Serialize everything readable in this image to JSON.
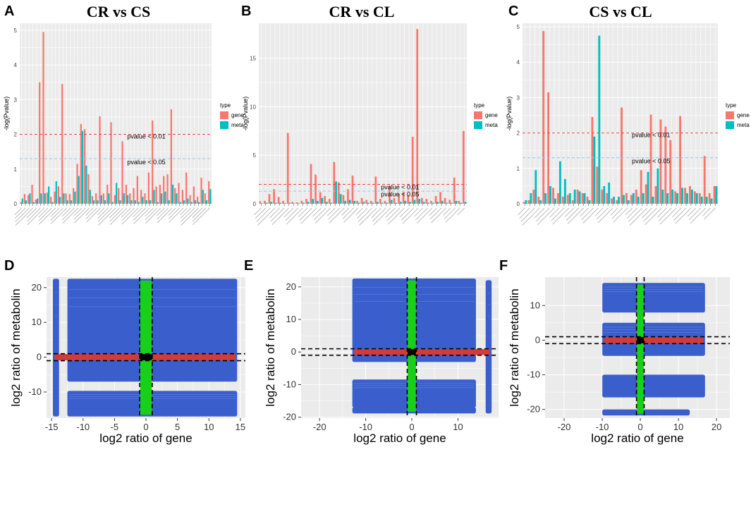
{
  "figure": {
    "panel_letters": [
      "A",
      "B",
      "C",
      "D",
      "E",
      "F"
    ]
  },
  "colors": {
    "gene": "#F8766D",
    "meta": "#00BFC4",
    "panel_bg": "#EBEBEB",
    "scatter_blue": "#3A5FCD",
    "scatter_red": "#D33B3B",
    "scatter_green": "#18D018",
    "scatter_black": "#000000"
  },
  "chart_data": [
    {
      "id": "A",
      "type": "bar",
      "title": "CR vs CS",
      "ylabel": "-log(Pvalue)",
      "xlabel": "",
      "ylim": [
        0,
        5.2
      ],
      "yticks": [
        0,
        1,
        2,
        3,
        4,
        5
      ],
      "legend": {
        "title": "type",
        "entries": [
          "gene",
          "meta"
        ],
        "position": "right"
      },
      "thresholds": [
        {
          "label": "pvalue < 0.01",
          "value": 2.0,
          "color": "#E8483F"
        },
        {
          "label": "pvalue < 0.05",
          "value": 1.3,
          "color": "#8CC8F0"
        }
      ],
      "series": [
        {
          "name": "gene",
          "values": [
            0.05,
            0.28,
            0.25,
            0.55,
            0.12,
            3.5,
            4.95,
            0.32,
            0.2,
            0.35,
            0.5,
            3.45,
            0.3,
            0.28,
            0.45,
            1.15,
            2.3,
            2.15,
            0.85,
            0.22,
            0.3,
            2.52,
            0.3,
            0.55,
            2.35,
            0.25,
            0.45,
            1.8,
            0.55,
            0.3,
            0.45,
            0.8,
            0.4,
            0.3,
            0.9,
            2.4,
            0.5,
            0.55,
            0.8,
            0.85,
            2.72,
            0.45,
            0.6,
            0.4,
            0.9,
            0.25,
            0.5,
            0.2,
            0.75,
            0.3,
            0.65
          ]
        },
        {
          "name": "meta",
          "values": [
            0.15,
            0.1,
            0.3,
            0.05,
            0.15,
            0.3,
            0.3,
            0.5,
            0.05,
            0.65,
            0.2,
            0.3,
            0.1,
            0.1,
            0.35,
            0.8,
            2.1,
            1.1,
            0.4,
            0.1,
            0.1,
            0.25,
            0.1,
            0.3,
            0.05,
            0.6,
            0.1,
            0.3,
            0.25,
            0.1,
            0.1,
            0.05,
            0.2,
            0.1,
            0.1,
            0.4,
            0.05,
            0.3,
            0.35,
            0.1,
            0.55,
            0.3,
            0.05,
            0.1,
            0.15,
            0.05,
            0.1,
            0.05,
            0.4,
            0.1,
            0.42
          ]
        }
      ]
    },
    {
      "id": "B",
      "type": "bar",
      "title": "CR vs CL",
      "ylabel": "-log(Pvalue)",
      "xlabel": "",
      "ylim": [
        0,
        18.6
      ],
      "yticks": [
        0,
        5,
        10,
        15
      ],
      "legend": {
        "title": "type",
        "entries": [
          "gene",
          "meta"
        ],
        "position": "right"
      },
      "thresholds": [
        {
          "label": "pvalue < 0.01",
          "value": 2.0,
          "color": "#E8483F"
        },
        {
          "label": "pvalue < 0.05",
          "value": 1.3,
          "color": "#8CC8F0"
        }
      ],
      "series": [
        {
          "name": "gene",
          "values": [
            0.25,
            0.3,
            1.0,
            1.5,
            0.7,
            0.3,
            7.3,
            0.2,
            0.15,
            0.3,
            0.5,
            4.1,
            3.0,
            1.2,
            0.8,
            0.5,
            4.3,
            2.2,
            0.9,
            1.5,
            2.9,
            0.3,
            0.6,
            0.4,
            0.3,
            2.8,
            0.5,
            0.3,
            1.8,
            0.6,
            1.0,
            1.2,
            0.9,
            6.9,
            18.0,
            0.6,
            0.5,
            0.3,
            0.8,
            1.2,
            0.6,
            0.4,
            2.7,
            0.3,
            7.5
          ]
        },
        {
          "name": "meta",
          "values": [
            0.05,
            0.1,
            0.2,
            0.1,
            0.1,
            0.05,
            0.1,
            0.05,
            0.05,
            0.1,
            0.2,
            0.5,
            0.3,
            0.6,
            0.2,
            0.1,
            2.3,
            1.0,
            0.3,
            0.4,
            0.3,
            0.1,
            0.2,
            0.1,
            0.1,
            0.2,
            0.1,
            0.1,
            0.4,
            0.1,
            0.2,
            0.3,
            0.2,
            0.4,
            0.5,
            0.2,
            0.1,
            0.1,
            0.2,
            0.3,
            0.1,
            0.1,
            0.3,
            0.1,
            0.2
          ]
        }
      ]
    },
    {
      "id": "C",
      "type": "bar",
      "title": "CS vs CL",
      "ylabel": "-log(Pvalue)",
      "xlabel": "",
      "ylim": [
        0,
        5.1
      ],
      "yticks": [
        0,
        1,
        2,
        3,
        4,
        5
      ],
      "legend": {
        "title": "type",
        "entries": [
          "gene",
          "meta"
        ],
        "position": "right"
      },
      "thresholds": [
        {
          "label": "pvalue < 0.01",
          "value": 2.0,
          "color": "#E8483F"
        },
        {
          "label": "pvalue < 0.05",
          "value": 1.3,
          "color": "#8CC8F0"
        }
      ],
      "series": [
        {
          "name": "gene",
          "values": [
            0.05,
            0.1,
            0.4,
            0.2,
            4.88,
            3.15,
            0.45,
            0.3,
            0.2,
            0.25,
            0.1,
            0.4,
            0.3,
            0.2,
            2.45,
            1.05,
            0.4,
            0.3,
            0.15,
            0.1,
            2.72,
            0.3,
            0.25,
            0.4,
            0.95,
            0.55,
            2.52,
            0.5,
            2.38,
            2.18,
            1.8,
            0.35,
            2.48,
            0.45,
            0.5,
            0.35,
            0.3,
            1.35,
            0.3,
            0.5
          ]
        },
        {
          "name": "meta",
          "values": [
            0.1,
            0.3,
            0.95,
            0.1,
            0.3,
            0.5,
            0.15,
            1.2,
            0.7,
            0.3,
            0.4,
            0.35,
            0.3,
            0.1,
            1.9,
            4.75,
            0.5,
            0.6,
            0.2,
            0.2,
            0.25,
            0.1,
            0.3,
            0.2,
            0.3,
            0.9,
            0.2,
            1.0,
            0.4,
            0.3,
            0.4,
            0.3,
            0.45,
            0.3,
            0.4,
            0.3,
            0.2,
            0.2,
            0.15,
            0.5
          ]
        }
      ]
    },
    {
      "id": "D",
      "type": "scatter",
      "xlabel": "log2 ratio of gene",
      "ylabel": "log2 ratio of metabolin",
      "xlim": [
        -15.8,
        15.8
      ],
      "ylim": [
        -17.5,
        23
      ],
      "xticks": [
        -15,
        -10,
        -5,
        0,
        5,
        10,
        15
      ],
      "yticks": [
        -10,
        0,
        10,
        20
      ],
      "vlines": [
        -1,
        1
      ],
      "hlines": [
        -1,
        1
      ],
      "blue_blocks": [
        {
          "x": [
            -14.5,
            -14.1
          ],
          "y": [
            -16.5,
            22
          ]
        },
        {
          "x": [
            -12.2,
            14.2
          ],
          "y": [
            -6.5,
            22
          ]
        },
        {
          "x": [
            -12.2,
            14.2
          ],
          "y": [
            -16.5,
            -10.2
          ]
        }
      ],
      "red_band": {
        "x": [
          -14.5,
          14.2
        ],
        "y": [
          -0.9,
          0.9
        ]
      },
      "green_band": {
        "x": [
          -0.9,
          0.9
        ],
        "y": [
          -16.5,
          22
        ]
      },
      "black_center": {
        "x": 0,
        "y": 0
      }
    },
    {
      "id": "E",
      "type": "scatter",
      "xlabel": "log2 ratio of gene",
      "ylabel": "log2 ratio of metabolin",
      "xlim": [
        -24,
        18.8
      ],
      "ylim": [
        -20.3,
        23
      ],
      "xticks": [
        -20,
        -10,
        0,
        10
      ],
      "yticks": [
        -20,
        -10,
        0,
        10,
        20
      ],
      "vlines": [
        -1,
        1
      ],
      "hlines": [
        -1,
        1
      ],
      "blue_blocks": [
        {
          "x": [
            -12.5,
            13.5
          ],
          "y": [
            -2.5,
            22
          ]
        },
        {
          "x": [
            -12.5,
            13.5
          ],
          "y": [
            -16.5,
            -9
          ]
        },
        {
          "x": [
            -12.5,
            13.5
          ],
          "y": [
            -18.3,
            -17.5
          ]
        },
        {
          "x": [
            16.4,
            16.9
          ],
          "y": [
            -18.3,
            21.5
          ]
        }
      ],
      "red_band": {
        "x": [
          -12.5,
          16.9
        ],
        "y": [
          -0.9,
          0.9
        ]
      },
      "green_band": {
        "x": [
          -0.9,
          0.9
        ],
        "y": [
          -18.3,
          22
        ]
      },
      "black_center": {
        "x": 0,
        "y": 0
      }
    },
    {
      "id": "F",
      "type": "scatter",
      "xlabel": "log2 ratio of gene",
      "ylabel": "log2 ratio of metabolin",
      "xlim": [
        -25,
        23.5
      ],
      "ylim": [
        -22.5,
        18.2
      ],
      "xticks": [
        -20,
        -10,
        0,
        10,
        20
      ],
      "yticks": [
        -20,
        -10,
        0,
        10
      ],
      "vlines": [
        -1,
        1
      ],
      "hlines": [
        -1,
        1
      ],
      "blue_blocks": [
        {
          "x": [
            -9.5,
            16.5
          ],
          "y": [
            8.5,
            16
          ]
        },
        {
          "x": [
            -9.5,
            16.5
          ],
          "y": [
            -4,
            4.5
          ]
        },
        {
          "x": [
            -9.5,
            16.5
          ],
          "y": [
            -16,
            -10.5
          ]
        },
        {
          "x": [
            -9.5,
            12.5
          ],
          "y": [
            -21.2,
            -20.5
          ]
        }
      ],
      "red_band": {
        "x": [
          -9.5,
          16.5
        ],
        "y": [
          -0.9,
          0.9
        ]
      },
      "green_band": {
        "x": [
          -0.9,
          0.9
        ],
        "y": [
          -21.2,
          16
        ]
      },
      "black_center": {
        "x": 0,
        "y": 0
      }
    }
  ]
}
